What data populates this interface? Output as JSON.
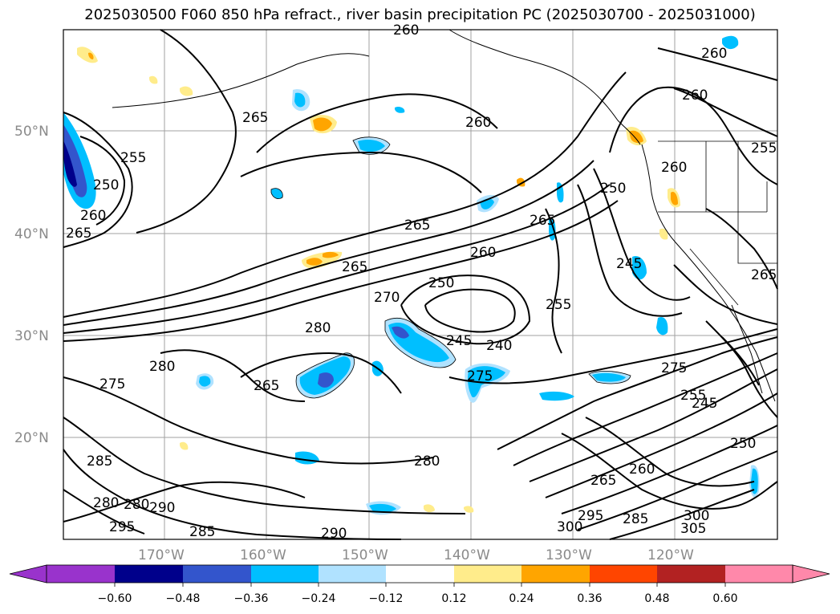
{
  "title": "2025030500 F060 850 hPa refract., river basin precipitation PC (2025030700 - 2025031000)",
  "lat_labels": [
    "50°N",
    "40°N",
    "30°N",
    "20°N"
  ],
  "lon_labels": [
    "170°W",
    "160°W",
    "150°W",
    "140°W",
    "130°W",
    "120°W"
  ],
  "contour_labels": [
    "265",
    "260",
    "255",
    "250",
    "260",
    "265",
    "260",
    "260",
    "265",
    "260",
    "255",
    "250",
    "265",
    "270",
    "280",
    "250",
    "255",
    "260",
    "245",
    "260",
    "240",
    "245",
    "275",
    "275",
    "265",
    "280",
    "275",
    "280",
    "285",
    "280",
    "290",
    "295",
    "285",
    "290",
    "280",
    "300",
    "295",
    "285",
    "260",
    "265",
    "250",
    "245",
    "255",
    "300",
    "305",
    "265",
    "265"
  ],
  "colorbar": {
    "ticks": [
      "−0.60",
      "−0.48",
      "−0.36",
      "−0.24",
      "−0.12",
      "0.12",
      "0.24",
      "0.36",
      "0.48",
      "0.60"
    ],
    "colors": [
      "#9933cc",
      "#00008b",
      "#3355cc",
      "#00bfff",
      "#b0e2ff",
      "#ffffff",
      "#ffec8b",
      "#ffa500",
      "#ff4500",
      "#b22222",
      "#ff88aa"
    ]
  },
  "palette": {
    "neg_light": "#b0e2ff",
    "neg_mid": "#00bfff",
    "neg_dark": "#3355cc",
    "neg_deep": "#00008b",
    "pos_light": "#ffec8b",
    "pos_mid": "#ffa500",
    "pos_dark": "#ff4500"
  }
}
